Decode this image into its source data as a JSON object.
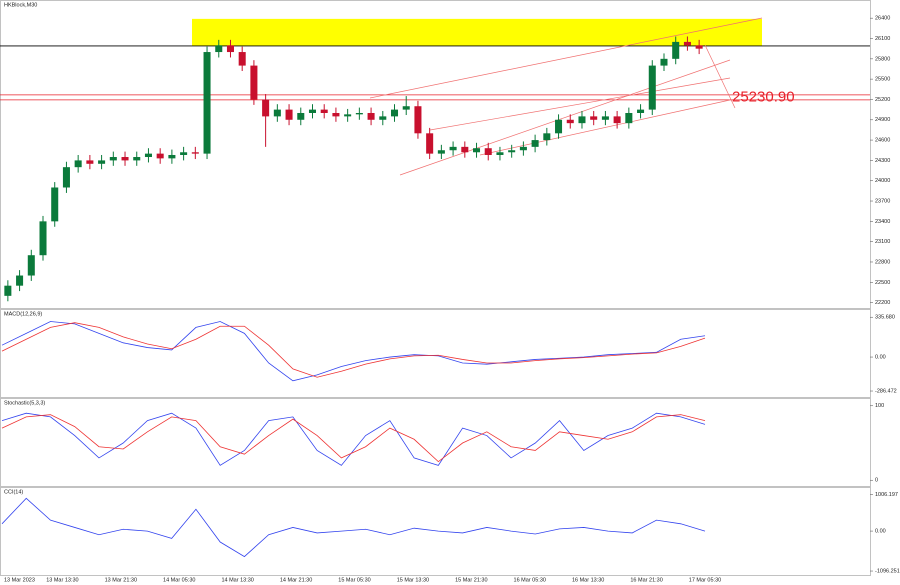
{
  "chart_data": [
    {
      "type": "candlestick",
      "title": "HKBlock,M30",
      "open": [
        22300,
        22450,
        22600,
        22900,
        23400,
        23900,
        24200,
        24300,
        24250,
        24300,
        24350,
        24300,
        24350,
        24400,
        24330,
        24380,
        24420,
        24400,
        25900,
        26000,
        25900,
        25700,
        25200,
        24950,
        25050,
        24900,
        25000,
        25050,
        25000,
        24950,
        24980,
        25000,
        24900,
        24950,
        25050,
        25100,
        24700,
        24400,
        24450,
        24500,
        24420,
        24480,
        24380,
        24420,
        24450,
        24500,
        24600,
        24700,
        24900,
        24850,
        24950,
        24900,
        24950,
        24850,
        25000,
        25050,
        25700,
        25800,
        26050,
        26000
      ],
      "high": [
        22530,
        22680,
        22980,
        23480,
        23980,
        24280,
        24380,
        24380,
        24380,
        24430,
        24430,
        24430,
        24480,
        24480,
        24460,
        24500,
        24500,
        25980,
        26080,
        26080,
        25980,
        25780,
        25280,
        25130,
        25130,
        25080,
        25130,
        25130,
        25080,
        25060,
        25080,
        25080,
        25030,
        25130,
        25250,
        25180,
        24780,
        24530,
        24580,
        24580,
        24560,
        24560,
        24500,
        24530,
        24580,
        24680,
        24780,
        24980,
        24980,
        25030,
        25030,
        25030,
        25030,
        25080,
        25130,
        25780,
        25880,
        26130,
        26130,
        26080
      ],
      "low": [
        22220,
        22370,
        22520,
        22820,
        23320,
        23820,
        24120,
        24170,
        24170,
        24220,
        24220,
        24220,
        24270,
        24250,
        24250,
        24300,
        24320,
        24320,
        25820,
        25820,
        25620,
        25120,
        24500,
        24870,
        24820,
        24820,
        24920,
        24920,
        24870,
        24870,
        24900,
        24820,
        24820,
        24870,
        24970,
        24620,
        24320,
        24320,
        24370,
        24340,
        24340,
        24300,
        24300,
        24340,
        24370,
        24420,
        24520,
        24620,
        24770,
        24770,
        24820,
        24820,
        24770,
        24770,
        24920,
        24970,
        25620,
        25720,
        25920,
        25870
      ],
      "close": [
        22450,
        22600,
        22900,
        23400,
        23900,
        24200,
        24300,
        24250,
        24300,
        24350,
        24300,
        24350,
        24400,
        24330,
        24380,
        24420,
        24400,
        25900,
        26000,
        25900,
        25700,
        25200,
        24950,
        25050,
        24900,
        25000,
        25050,
        25000,
        24950,
        24980,
        25000,
        24900,
        24950,
        25050,
        25100,
        24700,
        24400,
        24450,
        24500,
        24420,
        24480,
        24380,
        24420,
        24450,
        24500,
        24600,
        24700,
        24900,
        24850,
        24950,
        24900,
        24950,
        24850,
        25000,
        25050,
        25700,
        25800,
        26050,
        26000,
        25950
      ],
      "up_color": "#0b7a3b",
      "down_color": "#c8102e",
      "ylim": [
        22150,
        26580
      ],
      "yticks": [
        22200,
        22500,
        22800,
        23100,
        23400,
        23700,
        24000,
        24300,
        24600,
        24900,
        25200,
        25500,
        25800,
        26100,
        26400
      ],
      "zone": [
        25990,
        26390
      ],
      "zone_color": "#ffff00",
      "level": 25230.9,
      "level_label": "25230.90",
      "level_color": "#e8202a",
      "x_labels": [
        "13 Mar 2023",
        "13 Mar 13:30",
        "13 Mar 21:30",
        "14 Mar 05:30",
        "14 Mar 13:30",
        "14 Mar 21:30",
        "15 Mar 05:30",
        "15 Mar 13:30",
        "15 Mar 21:30",
        "16 Mar 05:30",
        "16 Mar 13:30",
        "16 Mar 21:30",
        "17 Mar 05:30"
      ]
    },
    {
      "type": "line",
      "title": "MACD(12,26,9)",
      "ylim": [
        -320,
        380
      ],
      "yticks": [
        {
          "value": 335.68,
          "label": "335.680"
        },
        {
          "value": 0,
          "label": "0.00"
        },
        {
          "value": -286.472,
          "label": "-286.472"
        }
      ],
      "series": [
        {
          "color": "#3344ee",
          "values": [
            100,
            200,
            300,
            280,
            200,
            120,
            80,
            60,
            250,
            300,
            200,
            -50,
            -200,
            -150,
            -80,
            -30,
            0,
            20,
            10,
            -50,
            -60,
            -40,
            -20,
            -10,
            0,
            20,
            30,
            40,
            150,
            180
          ]
        },
        {
          "color": "#ee3333",
          "values": [
            50,
            150,
            250,
            290,
            250,
            170,
            110,
            70,
            150,
            260,
            260,
            100,
            -100,
            -170,
            -120,
            -60,
            -15,
            10,
            15,
            -20,
            -50,
            -50,
            -30,
            -15,
            -5,
            10,
            25,
            35,
            90,
            160
          ]
        }
      ]
    },
    {
      "type": "line",
      "title": "Stochastic(5,3,3)",
      "ylim": [
        -5,
        105
      ],
      "yticks": [
        100,
        0
      ],
      "series": [
        {
          "color": "#3344ee",
          "values": [
            80,
            90,
            85,
            60,
            30,
            50,
            80,
            90,
            70,
            20,
            40,
            80,
            85,
            40,
            20,
            60,
            80,
            30,
            20,
            70,
            60,
            30,
            50,
            80,
            40,
            60,
            70,
            90,
            85,
            75
          ]
        },
        {
          "color": "#ee3333",
          "values": [
            70,
            85,
            88,
            72,
            45,
            42,
            65,
            85,
            80,
            45,
            35,
            60,
            82,
            60,
            30,
            45,
            70,
            55,
            25,
            50,
            65,
            45,
            40,
            65,
            60,
            55,
            65,
            85,
            88,
            80
          ]
        }
      ]
    },
    {
      "type": "line",
      "title": "CCI(14)",
      "ylim": [
        -1150,
        1100
      ],
      "yticks": [
        {
          "value": 1006.197,
          "label": "1006.197"
        },
        {
          "value": 0,
          "label": "0.00"
        },
        {
          "value": -1096.251,
          "label": "-1096.251"
        }
      ],
      "series": [
        {
          "color": "#3344ee",
          "values": [
            200,
            900,
            300,
            100,
            -100,
            50,
            0,
            -200,
            600,
            -300,
            -700,
            -100,
            100,
            -50,
            0,
            50,
            -100,
            80,
            0,
            -50,
            100,
            0,
            -80,
            60,
            100,
            0,
            -50,
            300,
            200,
            0
          ]
        }
      ]
    }
  ]
}
